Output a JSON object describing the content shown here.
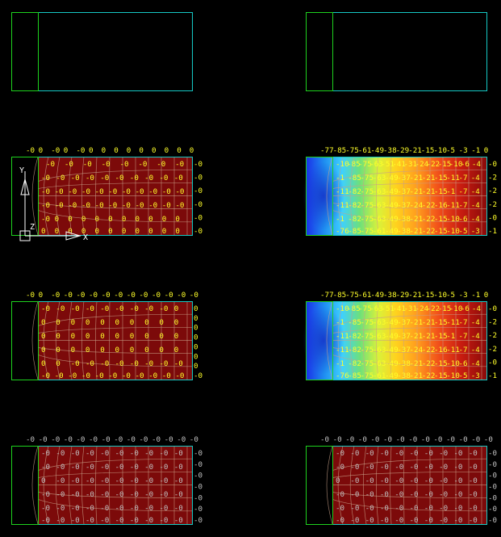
{
  "colors": {
    "background": "#000000",
    "outline": "#16c9c4",
    "support": "#1ed21e",
    "fill_uniform": "#7c0a0a",
    "mesh": "#c8a088",
    "label_yellow": "#ffff2a",
    "label_gray": "#c0c0c0",
    "axis": "#ffffff"
  },
  "axis_triad": {
    "x_label": "X",
    "y_label": "Y",
    "z_label": "Z"
  },
  "panels": [
    {
      "id": "row1-left",
      "style": "outline",
      "top_values": [],
      "right_values": [],
      "bottom_values": []
    },
    {
      "id": "row1-right",
      "style": "outline",
      "top_values": [],
      "right_values": [],
      "bottom_values": []
    },
    {
      "id": "row2-left",
      "style": "uniform",
      "label_color": "yellow",
      "top_values": [
        "-0",
        "0",
        "-0",
        "0",
        "-0",
        "0",
        "0",
        "0",
        "0",
        "0",
        "0",
        "0",
        "0",
        "0"
      ],
      "right_values": [
        "-0",
        "-0",
        "-0",
        "-0",
        "-0",
        "-0"
      ],
      "bottom_values": [],
      "interior_rows": [
        [
          "-0",
          "-0",
          "-0",
          "-0",
          "-0",
          "-0",
          "-0",
          "-0"
        ],
        [
          "-0",
          "-0",
          "-0",
          "-0",
          "-0",
          "-0",
          "-0",
          "-0",
          "-0",
          "-0"
        ],
        [
          "-0",
          "-0",
          "-0",
          "-0",
          "-0",
          "-0",
          "-0",
          "-0",
          "-0",
          "-0",
          "-0"
        ],
        [
          "-0",
          "-0",
          "-0",
          "-0",
          "-0",
          "-0",
          "-0",
          "-0",
          "-0",
          "-0",
          "-0"
        ],
        [
          "-0",
          "0",
          "0",
          "0",
          "0",
          "0",
          "0",
          "0",
          "0",
          "0",
          "0"
        ],
        [
          "0",
          "0",
          "0",
          "0",
          "0",
          "0",
          "0",
          "0",
          "0",
          "0",
          "0"
        ]
      ]
    },
    {
      "id": "row2-right",
      "style": "gradient",
      "label_color": "yellow",
      "top_values": [
        "-77",
        "-85",
        "-75",
        "-61",
        "-49",
        "-38",
        "-29",
        "-21",
        "-15",
        "-10",
        "-5",
        "-3",
        "-1",
        "0"
      ],
      "right_values": [
        "-0",
        "-2",
        "-2",
        "-2",
        "-0",
        "-1"
      ],
      "bottom_values": [],
      "interior_rows": [
        [
          "-10",
          "-85",
          "-75",
          "-63",
          "-51",
          "-41",
          "-31",
          "-24",
          "-22",
          "-15",
          "-10",
          "-6",
          "-4"
        ],
        [
          "-1",
          "-85",
          "-75",
          "-63",
          "-49",
          "-37",
          "-21",
          "-21",
          "-15",
          "-11",
          "-7",
          "-4"
        ],
        [
          "-11",
          "-82",
          "-75",
          "-63",
          "-49",
          "-37",
          "-21",
          "-21",
          "-15",
          "-1",
          "-7",
          "-4"
        ],
        [
          "-11",
          "-82",
          "-75",
          "-63",
          "-49",
          "-37",
          "-24",
          "-22",
          "-16",
          "-11",
          "-7",
          "-4"
        ],
        [
          "-1",
          "-82",
          "-75",
          "-63",
          "-49",
          "-38",
          "-21",
          "-22",
          "-15",
          "-10",
          "-6",
          "-4"
        ],
        [
          "-76",
          "-85",
          "-75",
          "-61",
          "-49",
          "-38",
          "-21",
          "-22",
          "-15",
          "-10",
          "-5",
          "-3"
        ]
      ]
    },
    {
      "id": "row3-left",
      "style": "uniform",
      "label_color": "yellow",
      "top_values": [
        "-0",
        "0",
        "-0",
        "-0",
        "-0",
        "-0",
        "-0",
        "-0",
        "-0",
        "-0",
        "-0",
        "-0",
        "-0",
        "-0"
      ],
      "right_values": [
        "0",
        "0",
        "0",
        "0",
        "0",
        "0",
        "0",
        "-0"
      ],
      "bottom_values": [],
      "interior_rows": [
        [
          "-0",
          "-0",
          "-0",
          "-0",
          "-0",
          "-0",
          "-0",
          "-0",
          "-0",
          "0"
        ],
        [
          "0",
          "0",
          "0",
          "0",
          "0",
          "0",
          "0",
          "0",
          "0",
          "0"
        ],
        [
          "0",
          "0",
          "0",
          "0",
          "0",
          "0",
          "0",
          "0",
          "0",
          "0"
        ],
        [
          "0",
          "0",
          "0",
          "0",
          "0",
          "0",
          "0",
          "0",
          "0",
          "0"
        ],
        [
          "0",
          "0",
          "-0",
          "-0",
          "-0",
          "-0",
          "-0",
          "-0",
          "-0",
          "-0"
        ],
        [
          "-0",
          "-0",
          "-0",
          "-0",
          "-0",
          "-0",
          "-0",
          "-0",
          "-0",
          "-0",
          "-0"
        ]
      ]
    },
    {
      "id": "row3-right",
      "style": "gradient",
      "label_color": "yellow",
      "top_values": [
        "-77",
        "-85",
        "-75",
        "-61",
        "-49",
        "-38",
        "-29",
        "-21",
        "-15",
        "-10",
        "-5",
        "-3",
        "-1",
        "0"
      ],
      "right_values": [
        "-0",
        "-2",
        "-2",
        "-2",
        "-0",
        "-1"
      ],
      "bottom_values": [],
      "interior_rows": [
        [
          "-10",
          "-85",
          "-75",
          "-63",
          "-51",
          "-41",
          "-31",
          "-24",
          "-22",
          "-15",
          "-10",
          "-6",
          "-4"
        ],
        [
          "-1",
          "-85",
          "-75",
          "-63",
          "-49",
          "-37",
          "-21",
          "-21",
          "-15",
          "-11",
          "-7",
          "-4"
        ],
        [
          "-11",
          "-82",
          "-75",
          "-63",
          "-49",
          "-37",
          "-21",
          "-21",
          "-15",
          "-1",
          "-7",
          "-4"
        ],
        [
          "-11",
          "-82",
          "-75",
          "-63",
          "-49",
          "-37",
          "-24",
          "-22",
          "-16",
          "-11",
          "-7",
          "-4"
        ],
        [
          "-1",
          "-82",
          "-75",
          "-63",
          "-49",
          "-38",
          "-21",
          "-22",
          "-15",
          "-10",
          "-6",
          "-4"
        ],
        [
          "-76",
          "-85",
          "-75",
          "-61",
          "-49",
          "-38",
          "-21",
          "-22",
          "-15",
          "-10",
          "-5",
          "-3"
        ]
      ]
    },
    {
      "id": "row4-left",
      "style": "uniform",
      "label_color": "gray",
      "top_values": [
        "-0",
        "-0",
        "-0",
        "-0",
        "-0",
        "-0",
        "-0",
        "-0",
        "-0",
        "-0",
        "-0",
        "-0",
        "-0",
        "-0"
      ],
      "right_values": [
        "-0",
        "-0",
        "-0",
        "-0",
        "-0",
        "-0",
        "-0"
      ],
      "bottom_values": [],
      "interior_rows": [
        [
          "-0",
          "-0",
          "-0",
          "-0",
          "-0",
          "-0",
          "-0",
          "-0",
          "-0",
          "-0"
        ],
        [
          "-0",
          "-0",
          "-0",
          "-0",
          "-0",
          "-0",
          "-0",
          "-0",
          "-0",
          "-0"
        ],
        [
          "0",
          "-0",
          "-0",
          "-0",
          "-0",
          "-0",
          "-0",
          "-0",
          "-0",
          "-0"
        ],
        [
          "-0",
          "-0",
          "-0",
          "-0",
          "-0",
          "-0",
          "-0",
          "-0",
          "-0",
          "-0"
        ],
        [
          "-0",
          "-0",
          "-0",
          "-0",
          "-0",
          "-0",
          "-0",
          "-0",
          "-0",
          "-0"
        ],
        [
          "-0",
          "-0",
          "-0",
          "-0",
          "-0",
          "-0",
          "-0",
          "-0",
          "-0",
          "-0"
        ]
      ]
    },
    {
      "id": "row4-right",
      "style": "uniform",
      "label_color": "gray",
      "top_values": [
        "-0",
        "-0",
        "-0",
        "-0",
        "-0",
        "-0",
        "-0",
        "-0",
        "-0",
        "-0",
        "-0",
        "-0",
        "-0",
        "-0"
      ],
      "right_values": [
        "-0",
        "-0",
        "-0",
        "-0",
        "-0",
        "-0",
        "-0"
      ],
      "bottom_values": [],
      "interior_rows": [
        [
          "-0",
          "-0",
          "-0",
          "-0",
          "-0",
          "-0",
          "-0",
          "-0",
          "-0",
          "-0"
        ],
        [
          "-0",
          "-0",
          "-0",
          "-0",
          "-0",
          "-0",
          "-0",
          "-0",
          "-0",
          "-0"
        ],
        [
          "0",
          "-0",
          "-0",
          "-0",
          "-0",
          "-0",
          "-0",
          "-0",
          "-0",
          "-0"
        ],
        [
          "-0",
          "-0",
          "-0",
          "-0",
          "-0",
          "-0",
          "-0",
          "-0",
          "-0",
          "-0"
        ],
        [
          "-0",
          "-0",
          "-0",
          "-0",
          "-0",
          "-0",
          "-0",
          "-0",
          "-0",
          "-0"
        ],
        [
          "-0",
          "-0",
          "-0",
          "-0",
          "-0",
          "-0",
          "-0",
          "-0",
          "-0",
          "-0"
        ]
      ]
    }
  ]
}
